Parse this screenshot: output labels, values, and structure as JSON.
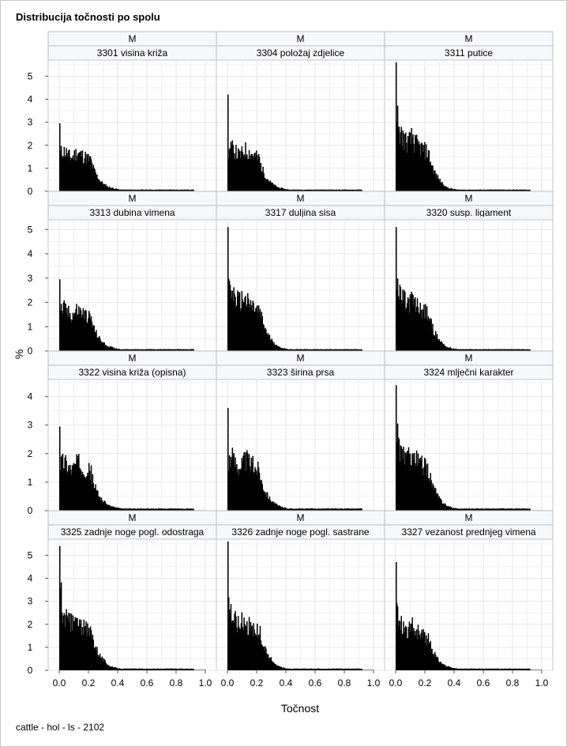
{
  "title": "Distribucija točnosti po spolu",
  "footnote": "cattle - hol - ls - 2102",
  "chart_data": {
    "type": "bar",
    "subtype": "histogram-panel",
    "title": "Distribucija točnosti po spolu",
    "xlabel": "Točnost",
    "ylabel": "%",
    "xlim": [
      0,
      1
    ],
    "xticks": [
      "0.0",
      "0.2",
      "0.4",
      "0.6",
      "0.8",
      "1.0"
    ],
    "grid": true,
    "bin_width": 0.005,
    "rows": [
      {
        "ylim": [
          0,
          5.7
        ],
        "yticks": [
          0,
          1,
          2,
          3,
          4,
          5
        ]
      },
      {
        "ylim": [
          0,
          5.4
        ],
        "yticks": [
          0,
          1,
          2,
          3,
          4,
          5
        ]
      },
      {
        "ylim": [
          0,
          4.6
        ],
        "yticks": [
          0,
          1,
          2,
          3,
          4
        ]
      },
      {
        "ylim": [
          0,
          5.7
        ],
        "yticks": [
          0,
          1,
          2,
          3,
          4,
          5
        ]
      }
    ],
    "panels": [
      {
        "sex": "M",
        "trait": "3301 visina križa",
        "peak": 2.95,
        "plateau": 1.6,
        "shape": "broad"
      },
      {
        "sex": "M",
        "trait": "3304 položaj zdjelice",
        "peak": 4.2,
        "plateau": 1.7,
        "shape": "broad"
      },
      {
        "sex": "M",
        "trait": "3311 putice",
        "peak": 5.6,
        "plateau": 2.3,
        "shape": "spike"
      },
      {
        "sex": "M",
        "trait": "3313 dubina vimena",
        "peak": 2.95,
        "plateau": 1.6,
        "shape": "broad"
      },
      {
        "sex": "M",
        "trait": "3317 duljina sisa",
        "peak": 5.1,
        "plateau": 2.2,
        "shape": "spike"
      },
      {
        "sex": "M",
        "trait": "3320 susp. ligament",
        "peak": 5.1,
        "plateau": 2.1,
        "shape": "spike"
      },
      {
        "sex": "M",
        "trait": "3322 visina križa (opisna)",
        "peak": 2.95,
        "plateau": 1.6,
        "shape": "broad"
      },
      {
        "sex": "M",
        "trait": "3323 širina prsa",
        "peak": 3.6,
        "plateau": 1.7,
        "shape": "broad"
      },
      {
        "sex": "M",
        "trait": "3324 mlječni karakter",
        "peak": 4.4,
        "plateau": 2.0,
        "shape": "spike"
      },
      {
        "sex": "M",
        "trait": "3325 zadnje noge pogl. odostraga",
        "peak": 5.4,
        "plateau": 2.2,
        "shape": "spike"
      },
      {
        "sex": "M",
        "trait": "3326 zadnje noge pogl. sastrane",
        "peak": 5.6,
        "plateau": 2.2,
        "shape": "spike"
      },
      {
        "sex": "M",
        "trait": "3327 vezanost prednjeg vimena",
        "peak": 4.7,
        "plateau": 1.9,
        "shape": "spike"
      }
    ]
  }
}
